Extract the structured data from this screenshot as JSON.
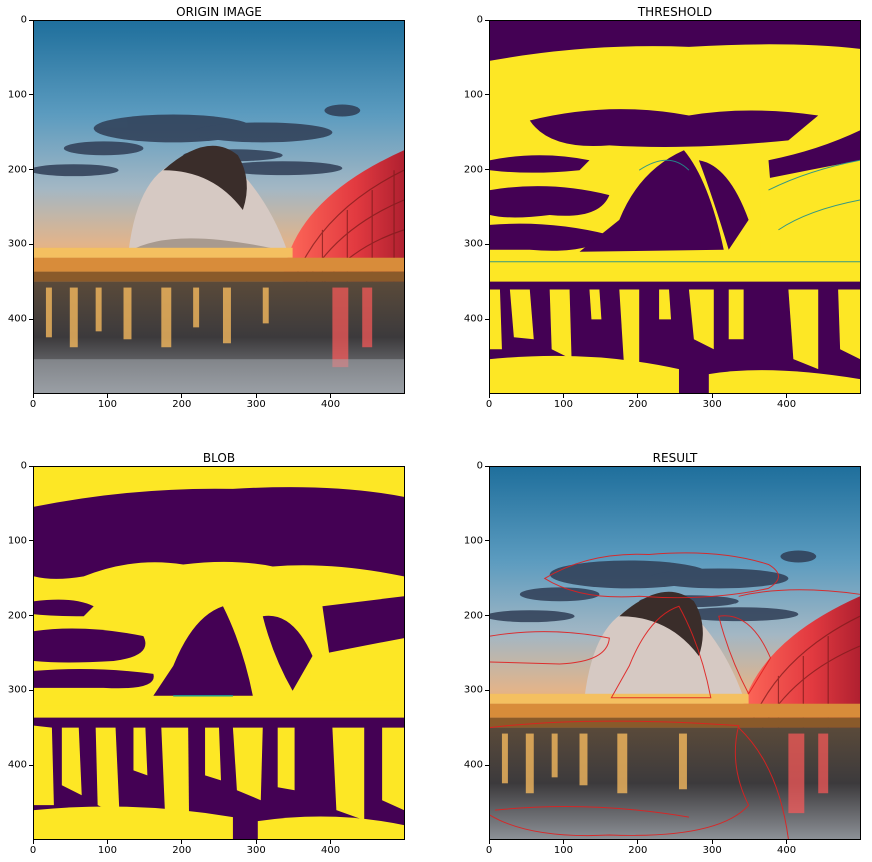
{
  "figure": {
    "panels": [
      {
        "id": "origin",
        "title": "ORIGIN IMAGE",
        "kind": "photo"
      },
      {
        "id": "threshold",
        "title": "THRESHOLD",
        "kind": "binary"
      },
      {
        "id": "blob",
        "title": "BLOB",
        "kind": "binary"
      },
      {
        "id": "result",
        "title": "RESULT",
        "kind": "photo-contours"
      }
    ],
    "x_ticks": [
      "0",
      "100",
      "200",
      "300",
      "400"
    ],
    "y_ticks": [
      "0",
      "100",
      "200",
      "300",
      "400"
    ],
    "image_extent": [
      0,
      500
    ],
    "colors": {
      "binary_low": "#440154",
      "binary_high": "#fde725",
      "binary_edge": "#21908d",
      "contour": "#e02020"
    }
  }
}
